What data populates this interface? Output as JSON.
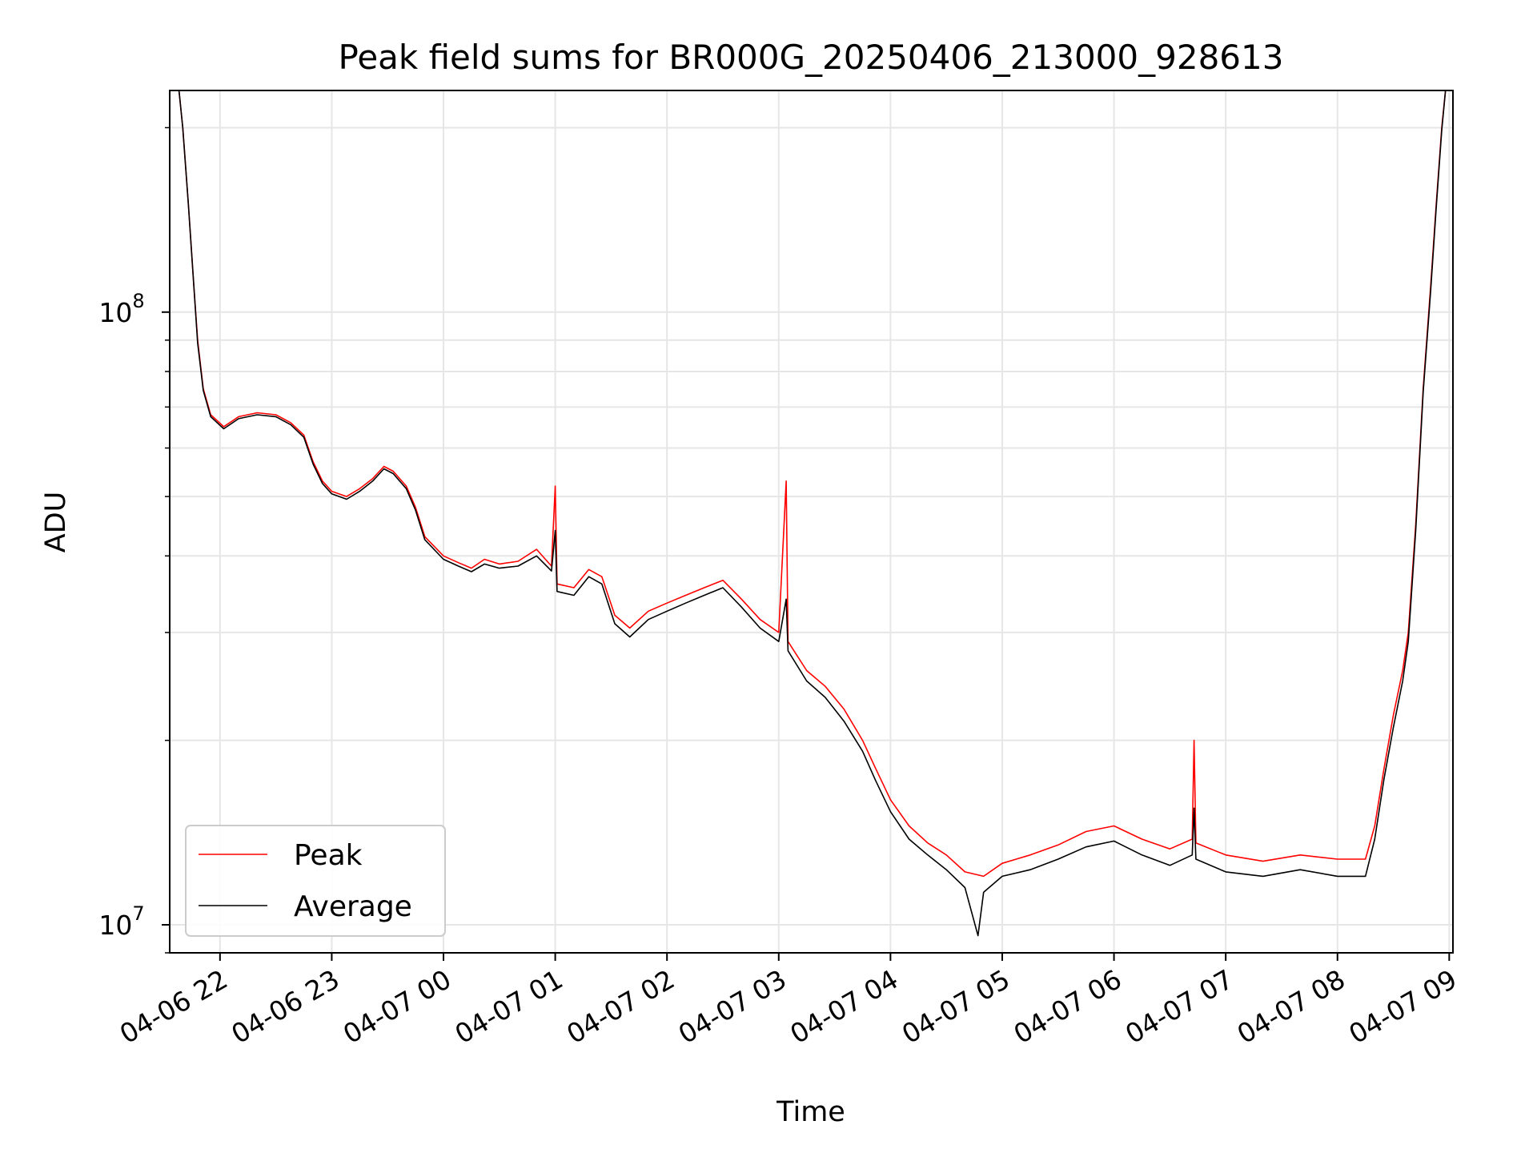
{
  "chart_data": {
    "type": "line",
    "title": "Peak field sums for BR000G_20250406_213000_928613",
    "xlabel": "Time",
    "ylabel": "ADU",
    "yscale": "log",
    "ylim": [
      9000000,
      230000000
    ],
    "xlim": [
      "2025-04-06 21:33",
      "2025-04-07 09:02"
    ],
    "grid": true,
    "legend_position": "lower-left",
    "x_ticks": [
      {
        "t": "2025-04-06 22:00",
        "label": "04-06 22"
      },
      {
        "t": "2025-04-06 23:00",
        "label": "04-06 23"
      },
      {
        "t": "2025-04-07 00:00",
        "label": "04-07 00"
      },
      {
        "t": "2025-04-07 01:00",
        "label": "04-07 01"
      },
      {
        "t": "2025-04-07 02:00",
        "label": "04-07 02"
      },
      {
        "t": "2025-04-07 03:00",
        "label": "04-07 03"
      },
      {
        "t": "2025-04-07 04:00",
        "label": "04-07 04"
      },
      {
        "t": "2025-04-07 05:00",
        "label": "04-07 05"
      },
      {
        "t": "2025-04-07 06:00",
        "label": "04-07 06"
      },
      {
        "t": "2025-04-07 07:00",
        "label": "04-07 07"
      },
      {
        "t": "2025-04-07 08:00",
        "label": "04-07 08"
      },
      {
        "t": "2025-04-07 09:00",
        "label": "04-07 09"
      }
    ],
    "y_ticks": [
      {
        "value": 10000000,
        "base": "10",
        "exp": "7"
      },
      {
        "value": 100000000,
        "base": "10",
        "exp": "8"
      }
    ],
    "series": [
      {
        "name": "Peak",
        "color": "#ff0000",
        "points": [
          [
            "2025-04-06 21:38",
            230000000
          ],
          [
            "2025-04-06 21:40",
            200000000
          ],
          [
            "2025-04-06 21:43",
            150000000
          ],
          [
            "2025-04-06 21:46",
            110000000
          ],
          [
            "2025-04-06 21:48",
            90000000
          ],
          [
            "2025-04-06 21:51",
            75000000
          ],
          [
            "2025-04-06 21:55",
            68000000
          ],
          [
            "2025-04-06 22:02",
            65000000
          ],
          [
            "2025-04-06 22:10",
            67500000
          ],
          [
            "2025-04-06 22:20",
            68500000
          ],
          [
            "2025-04-06 22:30",
            68000000
          ],
          [
            "2025-04-06 22:38",
            66000000
          ],
          [
            "2025-04-06 22:45",
            63000000
          ],
          [
            "2025-04-06 22:50",
            57000000
          ],
          [
            "2025-04-06 22:55",
            53000000
          ],
          [
            "2025-04-06 23:00",
            51000000
          ],
          [
            "2025-04-06 23:08",
            50000000
          ],
          [
            "2025-04-06 23:15",
            51500000
          ],
          [
            "2025-04-06 23:22",
            53500000
          ],
          [
            "2025-04-06 23:28",
            56000000
          ],
          [
            "2025-04-06 23:33",
            55000000
          ],
          [
            "2025-04-06 23:40",
            52000000
          ],
          [
            "2025-04-06 23:45",
            48000000
          ],
          [
            "2025-04-06 23:50",
            43000000
          ],
          [
            "2025-04-07 00:00",
            40000000
          ],
          [
            "2025-04-07 00:08",
            39000000
          ],
          [
            "2025-04-07 00:15",
            38200000
          ],
          [
            "2025-04-07 00:22",
            39500000
          ],
          [
            "2025-04-07 00:30",
            38800000
          ],
          [
            "2025-04-07 00:40",
            39200000
          ],
          [
            "2025-04-07 00:50",
            41000000
          ],
          [
            "2025-04-07 00:58",
            38500000
          ],
          [
            "2025-04-07 01:00",
            52000000
          ],
          [
            "2025-04-07 01:01",
            36000000
          ],
          [
            "2025-04-07 01:10",
            35500000
          ],
          [
            "2025-04-07 01:18",
            38000000
          ],
          [
            "2025-04-07 01:25",
            37000000
          ],
          [
            "2025-04-07 01:32",
            32000000
          ],
          [
            "2025-04-07 01:40",
            30500000
          ],
          [
            "2025-04-07 01:50",
            32500000
          ],
          [
            "2025-04-07 02:00",
            33500000
          ],
          [
            "2025-04-07 02:10",
            34500000
          ],
          [
            "2025-04-07 02:20",
            35500000
          ],
          [
            "2025-04-07 02:30",
            36500000
          ],
          [
            "2025-04-07 02:40",
            34000000
          ],
          [
            "2025-04-07 02:50",
            31500000
          ],
          [
            "2025-04-07 03:00",
            30000000
          ],
          [
            "2025-04-07 03:04",
            53000000
          ],
          [
            "2025-04-07 03:05",
            29000000
          ],
          [
            "2025-04-07 03:15",
            26000000
          ],
          [
            "2025-04-07 03:25",
            24500000
          ],
          [
            "2025-04-07 03:35",
            22500000
          ],
          [
            "2025-04-07 03:45",
            20000000
          ],
          [
            "2025-04-07 03:52",
            18000000
          ],
          [
            "2025-04-07 04:00",
            16000000
          ],
          [
            "2025-04-07 04:10",
            14500000
          ],
          [
            "2025-04-07 04:20",
            13600000
          ],
          [
            "2025-04-07 04:30",
            13000000
          ],
          [
            "2025-04-07 04:40",
            12200000
          ],
          [
            "2025-04-07 04:50",
            12000000
          ],
          [
            "2025-04-07 05:00",
            12600000
          ],
          [
            "2025-04-07 05:15",
            13000000
          ],
          [
            "2025-04-07 05:30",
            13500000
          ],
          [
            "2025-04-07 05:45",
            14200000
          ],
          [
            "2025-04-07 06:00",
            14500000
          ],
          [
            "2025-04-07 06:15",
            13800000
          ],
          [
            "2025-04-07 06:30",
            13300000
          ],
          [
            "2025-04-07 06:42",
            13800000
          ],
          [
            "2025-04-07 06:43",
            20000000
          ],
          [
            "2025-04-07 06:44",
            13600000
          ],
          [
            "2025-04-07 07:00",
            13000000
          ],
          [
            "2025-04-07 07:20",
            12700000
          ],
          [
            "2025-04-07 07:40",
            13000000
          ],
          [
            "2025-04-07 08:00",
            12800000
          ],
          [
            "2025-04-07 08:15",
            12800000
          ],
          [
            "2025-04-07 08:20",
            14500000
          ],
          [
            "2025-04-07 08:25",
            18000000
          ],
          [
            "2025-04-07 08:30",
            22000000
          ],
          [
            "2025-04-07 08:35",
            26000000
          ],
          [
            "2025-04-07 08:38",
            30000000
          ],
          [
            "2025-04-07 08:42",
            45000000
          ],
          [
            "2025-04-07 08:46",
            75000000
          ],
          [
            "2025-04-07 08:50",
            110000000
          ],
          [
            "2025-04-07 08:53",
            150000000
          ],
          [
            "2025-04-07 08:56",
            200000000
          ],
          [
            "2025-04-07 08:58",
            230000000
          ]
        ]
      },
      {
        "name": "Average",
        "color": "#000000",
        "points": [
          [
            "2025-04-06 21:38",
            230000000
          ],
          [
            "2025-04-06 21:40",
            200000000
          ],
          [
            "2025-04-06 21:43",
            150000000
          ],
          [
            "2025-04-06 21:46",
            110000000
          ],
          [
            "2025-04-06 21:48",
            89000000
          ],
          [
            "2025-04-06 21:51",
            74500000
          ],
          [
            "2025-04-06 21:55",
            67500000
          ],
          [
            "2025-04-06 22:02",
            64500000
          ],
          [
            "2025-04-06 22:10",
            67000000
          ],
          [
            "2025-04-06 22:20",
            68000000
          ],
          [
            "2025-04-06 22:30",
            67500000
          ],
          [
            "2025-04-06 22:38",
            65500000
          ],
          [
            "2025-04-06 22:45",
            62500000
          ],
          [
            "2025-04-06 22:50",
            56500000
          ],
          [
            "2025-04-06 22:55",
            52500000
          ],
          [
            "2025-04-06 23:00",
            50500000
          ],
          [
            "2025-04-06 23:08",
            49500000
          ],
          [
            "2025-04-06 23:15",
            51000000
          ],
          [
            "2025-04-06 23:22",
            53000000
          ],
          [
            "2025-04-06 23:28",
            55500000
          ],
          [
            "2025-04-06 23:33",
            54500000
          ],
          [
            "2025-04-06 23:40",
            51500000
          ],
          [
            "2025-04-06 23:45",
            47500000
          ],
          [
            "2025-04-06 23:50",
            42500000
          ],
          [
            "2025-04-07 00:00",
            39500000
          ],
          [
            "2025-04-07 00:08",
            38500000
          ],
          [
            "2025-04-07 00:15",
            37700000
          ],
          [
            "2025-04-07 00:22",
            38800000
          ],
          [
            "2025-04-07 00:30",
            38200000
          ],
          [
            "2025-04-07 00:40",
            38500000
          ],
          [
            "2025-04-07 00:50",
            40000000
          ],
          [
            "2025-04-07 00:58",
            37800000
          ],
          [
            "2025-04-07 01:00",
            44000000
          ],
          [
            "2025-04-07 01:01",
            35000000
          ],
          [
            "2025-04-07 01:10",
            34500000
          ],
          [
            "2025-04-07 01:18",
            37000000
          ],
          [
            "2025-04-07 01:25",
            36000000
          ],
          [
            "2025-04-07 01:32",
            31000000
          ],
          [
            "2025-04-07 01:40",
            29500000
          ],
          [
            "2025-04-07 01:50",
            31500000
          ],
          [
            "2025-04-07 02:00",
            32500000
          ],
          [
            "2025-04-07 02:10",
            33500000
          ],
          [
            "2025-04-07 02:20",
            34500000
          ],
          [
            "2025-04-07 02:30",
            35500000
          ],
          [
            "2025-04-07 02:40",
            33000000
          ],
          [
            "2025-04-07 02:50",
            30500000
          ],
          [
            "2025-04-07 03:00",
            29000000
          ],
          [
            "2025-04-07 03:04",
            34000000
          ],
          [
            "2025-04-07 03:05",
            28000000
          ],
          [
            "2025-04-07 03:15",
            25000000
          ],
          [
            "2025-04-07 03:25",
            23500000
          ],
          [
            "2025-04-07 03:35",
            21500000
          ],
          [
            "2025-04-07 03:45",
            19200000
          ],
          [
            "2025-04-07 03:52",
            17200000
          ],
          [
            "2025-04-07 04:00",
            15300000
          ],
          [
            "2025-04-07 04:10",
            13800000
          ],
          [
            "2025-04-07 04:20",
            13000000
          ],
          [
            "2025-04-07 04:30",
            12300000
          ],
          [
            "2025-04-07 04:40",
            11500000
          ],
          [
            "2025-04-07 04:47",
            9600000
          ],
          [
            "2025-04-07 04:50",
            11300000
          ],
          [
            "2025-04-07 05:00",
            12000000
          ],
          [
            "2025-04-07 05:15",
            12300000
          ],
          [
            "2025-04-07 05:30",
            12800000
          ],
          [
            "2025-04-07 05:45",
            13400000
          ],
          [
            "2025-04-07 06:00",
            13700000
          ],
          [
            "2025-04-07 06:15",
            13000000
          ],
          [
            "2025-04-07 06:30",
            12500000
          ],
          [
            "2025-04-07 06:42",
            13000000
          ],
          [
            "2025-04-07 06:43",
            15500000
          ],
          [
            "2025-04-07 06:44",
            12800000
          ],
          [
            "2025-04-07 07:00",
            12200000
          ],
          [
            "2025-04-07 07:20",
            12000000
          ],
          [
            "2025-04-07 07:40",
            12300000
          ],
          [
            "2025-04-07 08:00",
            12000000
          ],
          [
            "2025-04-07 08:15",
            12000000
          ],
          [
            "2025-04-07 08:20",
            13800000
          ],
          [
            "2025-04-07 08:25",
            17300000
          ],
          [
            "2025-04-07 08:30",
            21000000
          ],
          [
            "2025-04-07 08:35",
            25000000
          ],
          [
            "2025-04-07 08:38",
            29000000
          ],
          [
            "2025-04-07 08:42",
            44000000
          ],
          [
            "2025-04-07 08:46",
            74000000
          ],
          [
            "2025-04-07 08:50",
            108000000
          ],
          [
            "2025-04-07 08:53",
            148000000
          ],
          [
            "2025-04-07 08:56",
            198000000
          ],
          [
            "2025-04-07 08:58",
            230000000
          ]
        ]
      }
    ]
  }
}
